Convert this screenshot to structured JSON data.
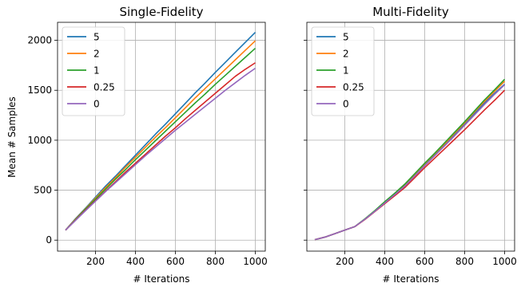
{
  "chart_data": [
    {
      "type": "line",
      "title": "Single-Fidelity",
      "xlabel": "# Iterations",
      "ylabel": "Mean # Samples",
      "xlim": [
        10,
        1050
      ],
      "ylim": [
        -110,
        2180
      ],
      "xticks": [
        200,
        400,
        600,
        800,
        1000
      ],
      "yticks": [
        0,
        500,
        1000,
        1500,
        2000
      ],
      "grid": true,
      "legend_position": "top-left",
      "x": [
        50,
        100,
        150,
        200,
        250,
        300,
        350,
        400,
        450,
        500,
        550,
        600,
        650,
        700,
        750,
        800,
        850,
        900,
        950,
        1000
      ],
      "series": [
        {
          "name": "5",
          "color": "#1f77b4",
          "values": [
            100,
            215,
            320,
            430,
            540,
            640,
            745,
            850,
            955,
            1060,
            1160,
            1265,
            1370,
            1475,
            1575,
            1680,
            1780,
            1880,
            1980,
            2080
          ]
        },
        {
          "name": "2",
          "color": "#ff7f0e",
          "values": [
            100,
            210,
            315,
            420,
            525,
            625,
            730,
            830,
            930,
            1030,
            1125,
            1225,
            1325,
            1425,
            1520,
            1615,
            1710,
            1805,
            1900,
            1995
          ]
        },
        {
          "name": "1",
          "color": "#2ca02c",
          "values": [
            100,
            205,
            310,
            410,
            510,
            610,
            705,
            805,
            900,
            995,
            1090,
            1185,
            1280,
            1375,
            1465,
            1560,
            1650,
            1740,
            1830,
            1920
          ]
        },
        {
          "name": "0.25",
          "color": "#d62728",
          "values": [
            100,
            200,
            300,
            395,
            490,
            585,
            680,
            770,
            860,
            950,
            1040,
            1125,
            1215,
            1300,
            1385,
            1470,
            1555,
            1640,
            1710,
            1775
          ]
        },
        {
          "name": "0",
          "color": "#9467bd",
          "values": [
            100,
            198,
            295,
            390,
            485,
            575,
            665,
            755,
            845,
            930,
            1015,
            1100,
            1180,
            1260,
            1340,
            1420,
            1500,
            1575,
            1650,
            1720
          ]
        }
      ]
    },
    {
      "type": "line",
      "title": "Multi-Fidelity",
      "xlabel": "# Iterations",
      "ylabel": "",
      "xlim": [
        10,
        1050
      ],
      "ylim": [
        -110,
        2180
      ],
      "xticks": [
        200,
        400,
        600,
        800,
        1000
      ],
      "yticks": [
        0,
        500,
        1000,
        1500,
        2000
      ],
      "grid": true,
      "legend_position": "top-left",
      "x": [
        50,
        100,
        150,
        200,
        250,
        300,
        350,
        400,
        450,
        500,
        550,
        600,
        650,
        700,
        750,
        800,
        850,
        900,
        950,
        1000
      ],
      "series": [
        {
          "name": "5",
          "color": "#1f77b4",
          "values": [
            5,
            30,
            65,
            100,
            135,
            210,
            290,
            375,
            460,
            545,
            650,
            755,
            855,
            955,
            1060,
            1165,
            1270,
            1375,
            1470,
            1560
          ]
        },
        {
          "name": "2",
          "color": "#ff7f0e",
          "values": [
            5,
            30,
            65,
            100,
            135,
            210,
            290,
            380,
            465,
            555,
            660,
            765,
            865,
            965,
            1070,
            1175,
            1285,
            1390,
            1490,
            1590
          ]
        },
        {
          "name": "1",
          "color": "#2ca02c",
          "values": [
            5,
            30,
            65,
            100,
            135,
            212,
            295,
            385,
            470,
            560,
            665,
            770,
            870,
            975,
            1080,
            1185,
            1295,
            1405,
            1505,
            1610
          ]
        },
        {
          "name": "0.25",
          "color": "#d62728",
          "values": [
            5,
            30,
            65,
            100,
            135,
            205,
            285,
            365,
            445,
            525,
            625,
            725,
            820,
            915,
            1010,
            1105,
            1205,
            1305,
            1400,
            1500
          ]
        },
        {
          "name": "0",
          "color": "#9467bd",
          "values": [
            5,
            30,
            65,
            100,
            135,
            208,
            288,
            372,
            455,
            540,
            642,
            745,
            845,
            945,
            1045,
            1150,
            1255,
            1360,
            1460,
            1555
          ]
        }
      ]
    }
  ]
}
